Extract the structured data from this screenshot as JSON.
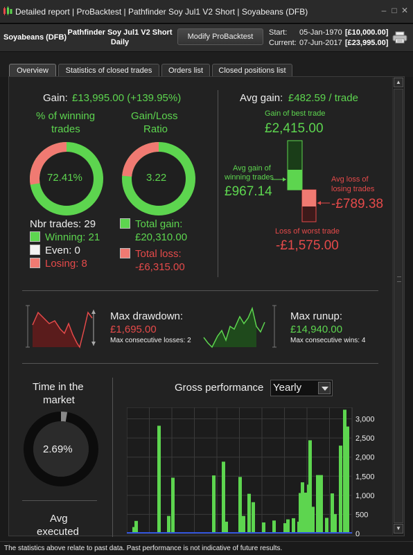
{
  "window": {
    "title": "Detailed report | ProBacktest | Pathfinder Soy Jul1 V2 Short | Soyabeans (DFB)"
  },
  "header": {
    "instrument": "Soyabeans (DFB)",
    "strategy_line1": "Pathfinder Soy Jul1 V2 Short",
    "strategy_line2": "Daily",
    "modify_label": "Modify ProBacktest",
    "start_label": "Start:",
    "start_date": "05-Jan-1970",
    "start_capital": "[£10,000.00]",
    "current_label": "Current:",
    "current_date": "07-Jun-2017",
    "current_capital": "[£23,995.00]"
  },
  "tabs": [
    {
      "label": "Overview",
      "active": true
    },
    {
      "label": "Statistics of closed trades",
      "active": false
    },
    {
      "label": "Orders list",
      "active": false
    },
    {
      "label": "Closed positions list",
      "active": false
    }
  ],
  "overview": {
    "gain_label": "Gain:",
    "gain_value": "£13,995.00 (+139.95%)",
    "pct_winning_title_1": "% of winning",
    "pct_winning_title_2": "trades",
    "pct_winning_value": "72.41%",
    "pct_winning_fraction": 0.7241,
    "gl_ratio_title_1": "Gain/Loss",
    "gl_ratio_title_2": "Ratio",
    "gl_ratio_value": "3.22",
    "gl_ratio_gain_fraction": 0.763,
    "nbr_trades": "Nbr trades: 29",
    "winning": "Winning: 21",
    "even": "Even: 0",
    "losing": "Losing: 8",
    "total_gain_label": "Total gain:",
    "total_gain_value": "£20,310.00",
    "total_loss_label": "Total loss:",
    "total_loss_value": "-£6,315.00",
    "avg_gain_label": "Avg gain:",
    "avg_gain_value": "£482.59 / trade",
    "best_trade_label": "Gain of best trade",
    "best_trade_value": "£2,415.00",
    "avg_gain_winning_label_1": "Avg gain of",
    "avg_gain_winning_label_2": "winning trades",
    "avg_gain_winning_value": "£967.14",
    "avg_loss_losing_label_1": "Avg loss of",
    "avg_loss_losing_label_2": "losing trades",
    "avg_loss_losing_value": "-£789.38",
    "worst_trade_label": "Loss of worst trade",
    "worst_trade_value": "-£1,575.00",
    "max_drawdown_label": "Max drawdown:",
    "max_drawdown_value": "£1,695.00",
    "max_consec_losses": "Max consecutive losses: 2",
    "max_runup_label": "Max runup:",
    "max_runup_value": "£14,940.00",
    "max_consec_wins": "Max consecutive wins: 4",
    "time_in_market_label_1": "Time in the",
    "time_in_market_label_2": "market",
    "time_in_market_value": "2.69%",
    "time_in_market_fraction": 0.0269,
    "avg_executed_label_1": "Avg",
    "avg_executed_label_2": "executed",
    "gross_perf_label": "Gross performance",
    "gross_perf_period": "Yearly"
  },
  "colors": {
    "gain": "#5dd54f",
    "loss": "#e54a4a",
    "panel": "#222222"
  },
  "chart_data": {
    "type": "bar",
    "title": "Gross performance",
    "yticks": [
      "3,000",
      "2,500",
      "2,000",
      "1,500",
      "1,000",
      "500",
      "0"
    ],
    "ylim": [
      0,
      3300
    ],
    "values": [
      170,
      330,
      2820,
      460,
      1460,
      1520,
      1880,
      310,
      1480,
      460,
      1040,
      820,
      290,
      340,
      270,
      370,
      310,
      1340,
      1070,
      1530,
      1530,
      410,
      1050,
      510,
      400,
      1060,
      930,
      1280,
      2440,
      700,
      2300,
      3240,
      2800
    ],
    "x_positions": [
      0.02,
      0.05,
      0.175,
      0.22,
      0.25,
      0.325,
      0.375,
      0.395,
      0.5,
      0.52,
      0.545,
      0.565,
      0.61,
      0.65,
      0.71,
      0.72,
      0.78,
      0.8,
      0.82,
      0.89,
      0.9,
      0.93,
      0.95,
      0.96,
      0.8,
      0.83,
      0.86,
      0.89,
      0.9,
      0.92,
      0.95,
      0.97,
      0.98
    ],
    "bar_color": "#5dd54f",
    "grid": true
  }
}
